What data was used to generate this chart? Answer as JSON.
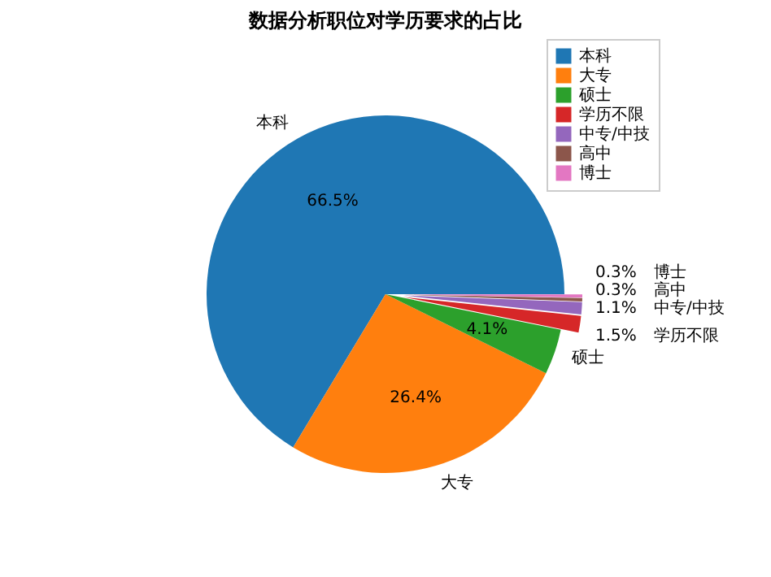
{
  "chart_data": {
    "type": "pie",
    "title": "数据分析职位对学历要求的占比",
    "categories": [
      "本科",
      "大专",
      "硕士",
      "学历不限",
      "中专/中技",
      "高中",
      "博士"
    ],
    "values": [
      66.5,
      26.4,
      4.1,
      1.5,
      1.1,
      0.3,
      0.3
    ],
    "colors": [
      "#1f77b4",
      "#ff7f0e",
      "#2ca02c",
      "#d62728",
      "#9467bd",
      "#8c564b",
      "#e377c2"
    ],
    "value_labels": [
      "66.5%",
      "26.4%",
      "4.1%",
      "1.5%",
      "1.1%",
      "0.3%",
      "0.3%"
    ],
    "legend": "top right"
  }
}
